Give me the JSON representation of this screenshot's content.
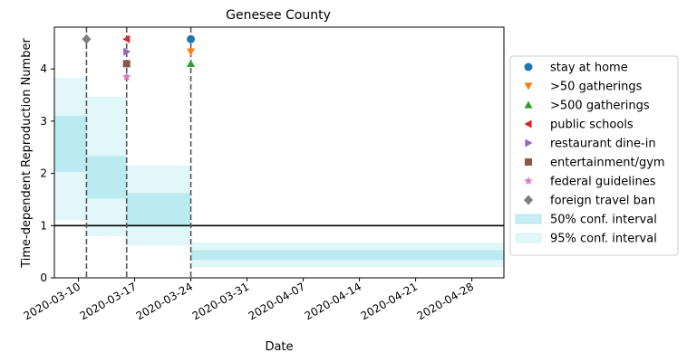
{
  "chart_data": {
    "type": "scatter",
    "title": "Genesee County",
    "xlabel": "Date",
    "ylabel": "Time-dependent Reproduction Number",
    "xlim": [
      "2020-03-07",
      "2020-05-02"
    ],
    "ylim": [
      0,
      4.8
    ],
    "yticks": [
      0,
      1,
      2,
      3,
      4
    ],
    "xticks": [
      "2020-03-10",
      "2020-03-17",
      "2020-03-24",
      "2020-03-31",
      "2020-04-07",
      "2020-04-14",
      "2020-04-21",
      "2020-04-28"
    ],
    "grid": false,
    "legend_position": "right",
    "reference_line": {
      "y": 1,
      "color": "#000000"
    },
    "event_lines": [
      "2020-03-11",
      "2020-03-16",
      "2020-03-24"
    ],
    "bands": {
      "color": "#17becf",
      "ci95": [
        {
          "start": "2020-03-07",
          "end": "2020-03-11",
          "low": 1.1,
          "high": 3.83
        },
        {
          "start": "2020-03-11",
          "end": "2020-03-16",
          "low": 0.8,
          "high": 3.47
        },
        {
          "start": "2020-03-16",
          "end": "2020-03-24",
          "low": 0.62,
          "high": 2.15
        },
        {
          "start": "2020-03-24",
          "end": "2020-05-02",
          "low": 0.2,
          "high": 0.68
        }
      ],
      "ci50": [
        {
          "start": "2020-03-07",
          "end": "2020-03-11",
          "low": 2.03,
          "high": 3.1
        },
        {
          "start": "2020-03-11",
          "end": "2020-03-16",
          "low": 1.52,
          "high": 2.33
        },
        {
          "start": "2020-03-16",
          "end": "2020-03-24",
          "low": 1.0,
          "high": 1.62
        },
        {
          "start": "2020-03-24",
          "end": "2020-05-02",
          "low": 0.34,
          "high": 0.53
        }
      ]
    },
    "series": [
      {
        "name": "stay at home",
        "marker": "circle",
        "color": "#1f77b4",
        "x": "2020-03-24",
        "y": 4.57
      },
      {
        "name": ">50 gatherings",
        "marker": "triangle-down",
        "color": "#ff7f0e",
        "x": "2020-03-24",
        "y": 4.33
      },
      {
        "name": ">500 gatherings",
        "marker": "triangle-up",
        "color": "#2ca02c",
        "x": "2020-03-24",
        "y": 4.1
      },
      {
        "name": "public schools",
        "marker": "triangle-left",
        "color": "#d62728",
        "x": "2020-03-16",
        "y": 4.57
      },
      {
        "name": "restaurant dine-in",
        "marker": "triangle-right",
        "color": "#9467bd",
        "x": "2020-03-16",
        "y": 4.33
      },
      {
        "name": "entertainment/gym",
        "marker": "square",
        "color": "#8c564b",
        "x": "2020-03-16",
        "y": 4.1
      },
      {
        "name": "federal guidelines",
        "marker": "star",
        "color": "#e377c2",
        "x": "2020-03-16",
        "y": 3.85
      },
      {
        "name": "foreign travel ban",
        "marker": "diamond",
        "color": "#7f7f7f",
        "x": "2020-03-11",
        "y": 4.57
      }
    ],
    "band_legend": [
      {
        "name": "50% conf. interval",
        "opacity": 0.25
      },
      {
        "name": "95% conf. interval",
        "opacity": 0.12
      }
    ]
  }
}
